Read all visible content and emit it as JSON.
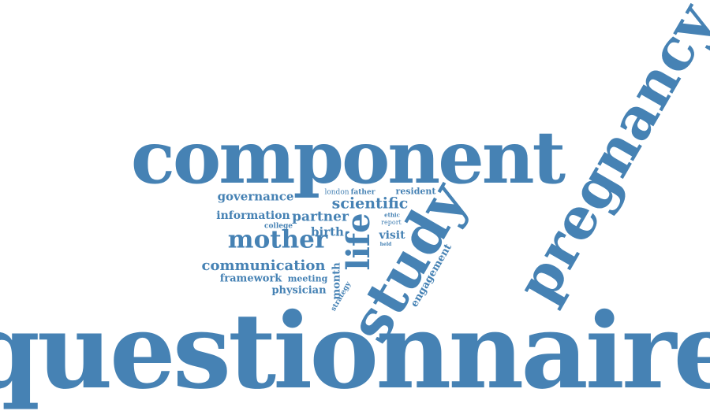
{
  "colors": {
    "word": "#4682b4",
    "background": "#ffffff"
  },
  "words": {
    "questionnaire": "questionnaire",
    "component": "component",
    "pregnancy": "pregnancy",
    "study": "study",
    "life": "life",
    "mother": "mother",
    "communication": "communication",
    "scientific": "scientific",
    "governance": "governance",
    "information": "information",
    "partner": "partner",
    "framework": "framework",
    "birth": "birth",
    "visit": "visit",
    "physician": "physician",
    "meeting": "meeting",
    "month": "month",
    "engagement": "engagement",
    "resident": "resident",
    "strategy": "strategy",
    "london": "london",
    "father": "father",
    "college": "college",
    "report": "report",
    "ethic": "ethic",
    "held": "held"
  }
}
